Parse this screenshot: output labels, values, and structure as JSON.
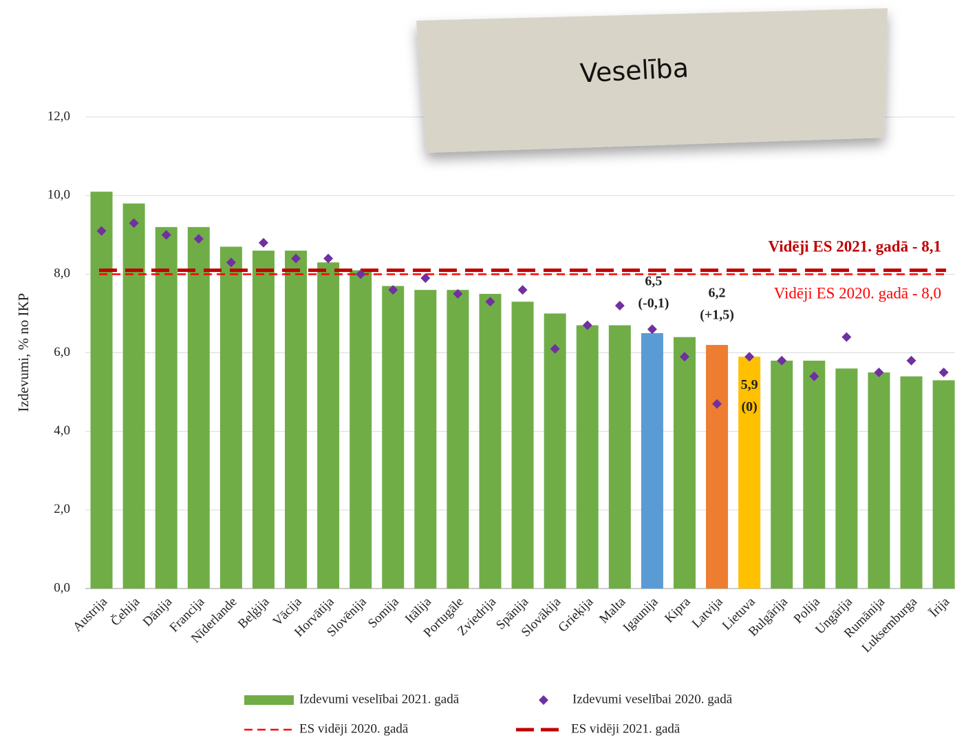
{
  "chart_data": {
    "type": "bar",
    "title": "Veselība",
    "y_label": "Izdevumi,  % no IKP",
    "categories": [
      "Austrija",
      "Čehija",
      "Dānija",
      "Francija",
      "Nīderlande",
      "Beļģija",
      "Vācija",
      "Horvātija",
      "Slovēnija",
      "Somija",
      "Itālija",
      "Portugāle",
      "Zviedrija",
      "Spānija",
      "Slovākija",
      "Grieķija",
      "Malta",
      "Igaunija",
      "Kipra",
      "Latvija",
      "Lietuva",
      "Bulgārija",
      "Polija",
      "Ungārija",
      "Rumānija",
      "Luksemburga",
      "Īrija"
    ],
    "series": [
      {
        "name": "Izdevumi veselībai 2021. gadā",
        "color": "#70ad47",
        "colors": [
          "#70ad47",
          "#70ad47",
          "#70ad47",
          "#70ad47",
          "#70ad47",
          "#70ad47",
          "#70ad47",
          "#70ad47",
          "#70ad47",
          "#70ad47",
          "#70ad47",
          "#70ad47",
          "#70ad47",
          "#70ad47",
          "#70ad47",
          "#70ad47",
          "#70ad47",
          "#5b9bd5",
          "#70ad47",
          "#ed7d31",
          "#ffc000",
          "#70ad47",
          "#70ad47",
          "#70ad47",
          "#70ad47",
          "#70ad47",
          "#70ad47"
        ],
        "values": [
          10.1,
          9.8,
          9.2,
          9.2,
          8.7,
          8.6,
          8.6,
          8.3,
          8.1,
          7.7,
          7.6,
          7.6,
          7.5,
          7.3,
          7.0,
          6.7,
          6.7,
          6.5,
          6.4,
          6.2,
          5.9,
          5.8,
          5.8,
          5.6,
          5.5,
          5.4,
          5.3
        ],
        "value_labels": [
          null,
          null,
          null,
          null,
          null,
          null,
          null,
          null,
          null,
          null,
          null,
          null,
          null,
          null,
          null,
          null,
          null,
          "6,5",
          null,
          "6,2",
          "5,9",
          null,
          null,
          null,
          null,
          null,
          null
        ],
        "change_labels": [
          null,
          null,
          null,
          null,
          null,
          null,
          null,
          null,
          null,
          null,
          null,
          null,
          null,
          null,
          null,
          null,
          null,
          "(-0,1)",
          null,
          "(+1,5)",
          "(0)",
          null,
          null,
          null,
          null,
          null,
          null
        ]
      },
      {
        "name": "Izdevumi veselībai 2020. gadā",
        "type": "scatter",
        "color": "#7030a0",
        "values": [
          9.1,
          9.3,
          9.0,
          8.9,
          8.3,
          8.8,
          8.4,
          8.4,
          8.0,
          7.6,
          7.9,
          7.5,
          7.3,
          7.6,
          6.1,
          6.7,
          7.2,
          6.6,
          5.9,
          4.7,
          5.9,
          5.8,
          5.4,
          6.4,
          5.5,
          5.8,
          5.5
        ]
      }
    ],
    "ref_lines": [
      {
        "name": "ES vidēji 2020. gadā",
        "value": 8.0,
        "color": "#ff0000",
        "label": "Vidēji ES 2020. gadā - 8,0"
      },
      {
        "name": "ES vidēji 2021. gadā",
        "value": 8.1,
        "color": "#c00000",
        "label": "Vidēji ES 2021. gadā - 8,1"
      }
    ],
    "ylim": [
      0,
      12
    ],
    "yticks": [
      {
        "value": 0,
        "label": "0,0"
      },
      {
        "value": 2,
        "label": "2,0"
      },
      {
        "value": 4,
        "label": "4,0"
      },
      {
        "value": 6,
        "label": "6,0"
      },
      {
        "value": 8,
        "label": "8,0"
      },
      {
        "value": 10,
        "label": "10,0"
      },
      {
        "value": 12,
        "label": "12,0"
      }
    ],
    "grid": true
  }
}
